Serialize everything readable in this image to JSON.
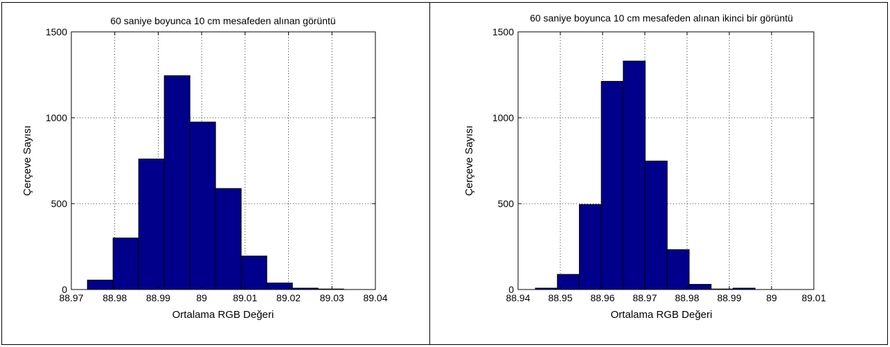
{
  "chart_data": [
    {
      "type": "bar",
      "title": "60 saniye  boyunca 10 cm mesafeden alınan görüntü",
      "xlabel": "Ortalama RGB Değeri",
      "ylabel": "Çerçeve Sayısı",
      "xlim": [
        88.97,
        89.04
      ],
      "ylim": [
        0,
        1500
      ],
      "xticks": [
        88.97,
        88.98,
        88.99,
        89,
        89.01,
        89.02,
        89.03,
        89.04
      ],
      "xtick_labels": [
        "88.97",
        "88.98",
        "88.99",
        "89",
        "89.01",
        "89.02",
        "89.03",
        "89.04"
      ],
      "yticks": [
        0,
        500,
        1000,
        1500
      ],
      "ytick_labels": [
        "0",
        "500",
        "1000",
        "1500"
      ],
      "bin_edges": [
        88.9737,
        88.9796,
        88.9855,
        88.9914,
        88.9973,
        89.0032,
        89.0091,
        89.015,
        89.0209,
        89.0268,
        89.0327
      ],
      "values": [
        55,
        300,
        760,
        1245,
        975,
        588,
        195,
        38,
        8,
        3
      ],
      "grid": true,
      "bar_color": "#00008B"
    },
    {
      "type": "bar",
      "title": "60 saniye  boyunca 10 cm mesafeden alınan ikinci bir görüntü",
      "xlabel": "Ortalama RGB Değeri",
      "ylabel": "Çerçeve Sayısı",
      "xlim": [
        88.94,
        89.01
      ],
      "ylim": [
        0,
        1500
      ],
      "xticks": [
        88.94,
        88.95,
        88.96,
        88.97,
        88.98,
        88.99,
        89,
        89.01
      ],
      "xtick_labels": [
        "88.94",
        "88.95",
        "88.96",
        "88.97",
        "88.98",
        "88.99",
        "89",
        "89.01"
      ],
      "yticks": [
        0,
        500,
        1000,
        1500
      ],
      "ytick_labels": [
        "0",
        "500",
        "1000",
        "1500"
      ],
      "bin_edges": [
        88.9441,
        88.9493,
        88.9545,
        88.9597,
        88.9649,
        88.9701,
        88.9753,
        88.9805,
        88.9857,
        88.9909,
        88.9961
      ],
      "values": [
        8,
        88,
        495,
        1212,
        1330,
        748,
        232,
        30,
        3,
        8
      ],
      "grid": true,
      "bar_color": "#00008B"
    }
  ]
}
